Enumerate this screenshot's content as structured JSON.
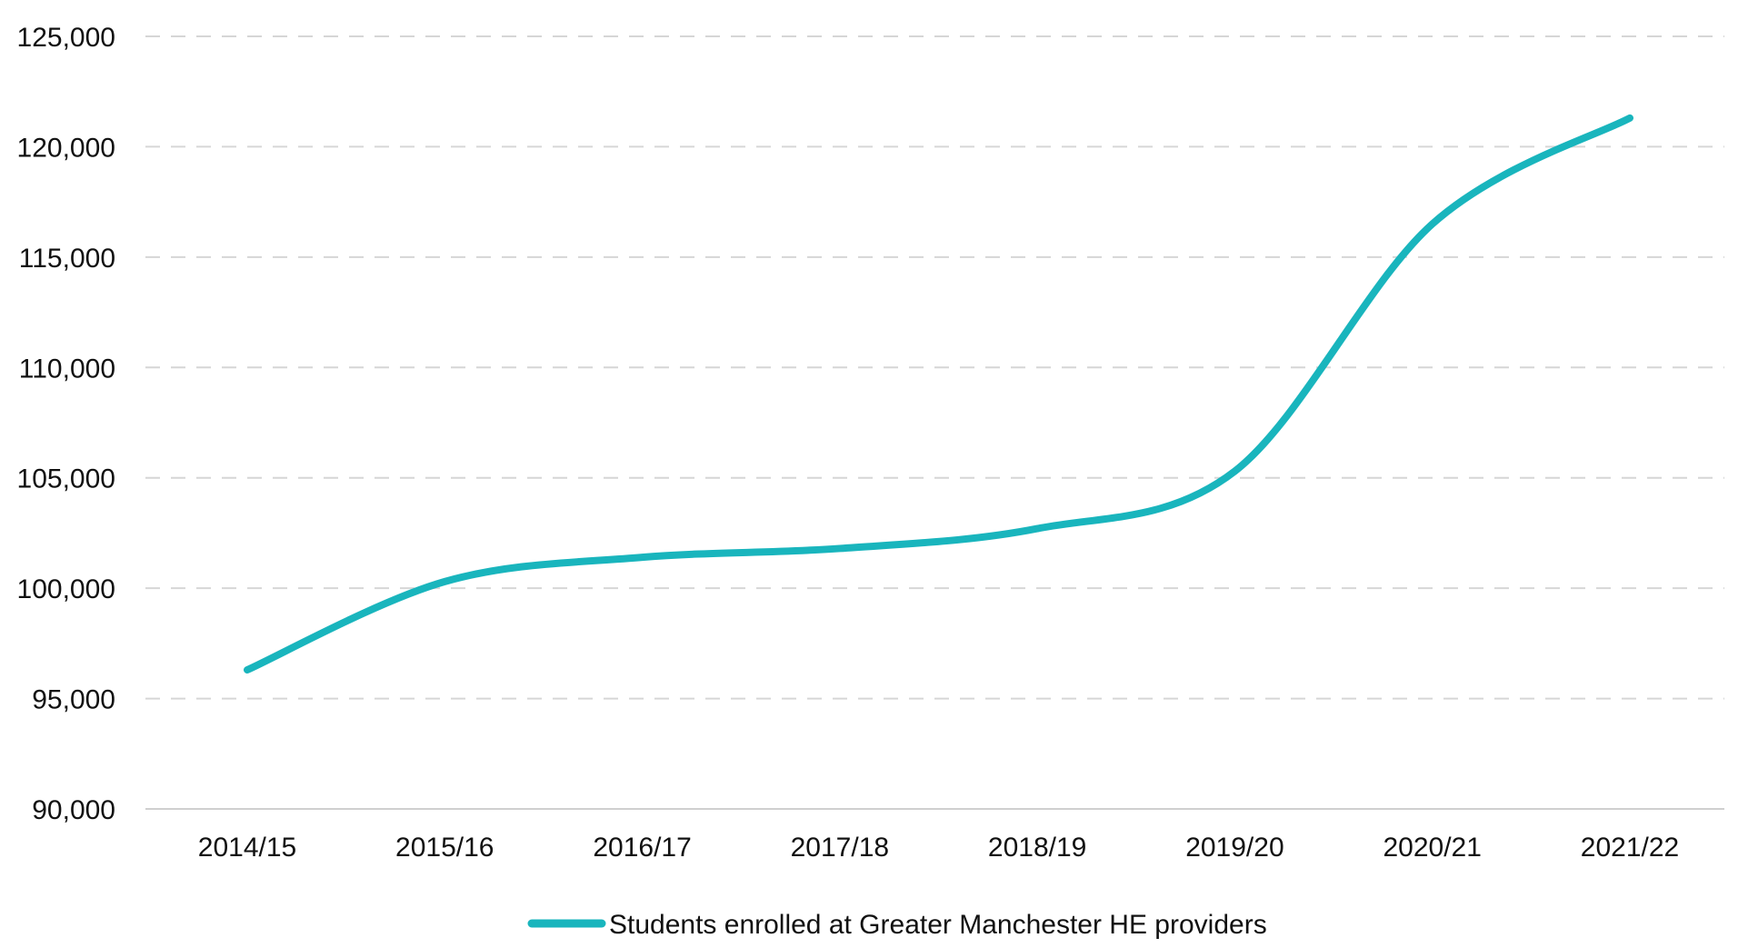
{
  "chart_data": {
    "type": "line",
    "categories": [
      "2014/15",
      "2015/16",
      "2016/17",
      "2017/18",
      "2018/19",
      "2019/20",
      "2020/21",
      "2021/22"
    ],
    "series": [
      {
        "name": "Students enrolled at Greater Manchester HE providers",
        "values": [
          96300,
          100300,
          101400,
          101800,
          102700,
          105300,
          116500,
          121300
        ],
        "color": "#19b5bd"
      }
    ],
    "ylim": [
      90000,
      125000
    ],
    "yticks": [
      90000,
      95000,
      100000,
      105000,
      110000,
      115000,
      120000,
      125000
    ],
    "grid": true,
    "grid_style": "dashed",
    "legend_position": "bottom-center",
    "title": "",
    "xlabel": "",
    "ylabel": ""
  }
}
